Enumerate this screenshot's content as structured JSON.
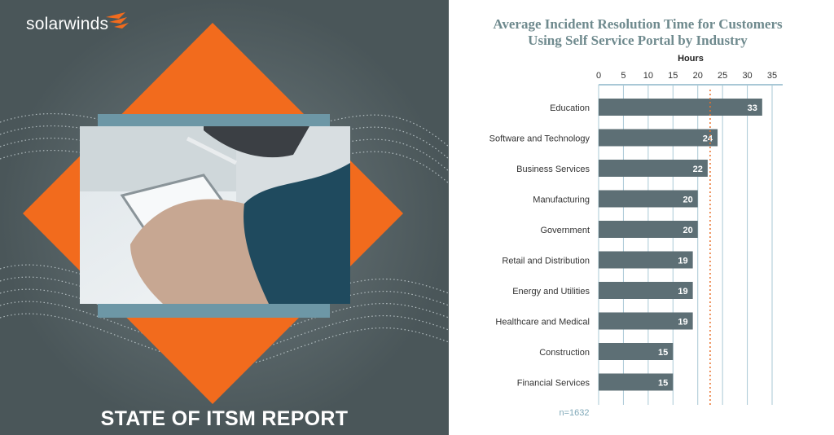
{
  "brand": {
    "name": "solarwinds"
  },
  "cover": {
    "title": "STATE OF ITSM REPORT"
  },
  "colors": {
    "bar": "#5d6f75",
    "grid": "#a9c8d6",
    "title": "#6f8a8e",
    "reference_line": "#e8702a",
    "accent": "#f26b1d"
  },
  "chart_data": {
    "type": "bar",
    "orientation": "horizontal",
    "title": "Average Incident Resolution Time for Customers Using Self Service Portal by Industry",
    "title_lines": [
      "Average Incident Resolution Time for Customers",
      "Using Self Service Portal by Industry"
    ],
    "xlabel": "Hours",
    "xlim": [
      0,
      35
    ],
    "xticks": [
      "0",
      "5",
      "10",
      "15",
      "20",
      "25",
      "30",
      "35"
    ],
    "tick_values": [
      0,
      5,
      10,
      15,
      20,
      25,
      30,
      35
    ],
    "categories": [
      "Education",
      "Software and Technology",
      "Business Services",
      "Manufacturing",
      "Government",
      "Retail and Distribution",
      "Energy and Utilities",
      "Healthcare and Medical",
      "Construction",
      "Financial Services"
    ],
    "values": [
      33,
      24,
      22,
      20,
      20,
      19,
      19,
      19,
      15,
      15
    ],
    "data_labels": [
      "33",
      "24",
      "22",
      "20",
      "20",
      "19",
      "19",
      "19",
      "15",
      "15"
    ],
    "reference_line": 22.5,
    "grid": true,
    "note": "n=1632"
  }
}
